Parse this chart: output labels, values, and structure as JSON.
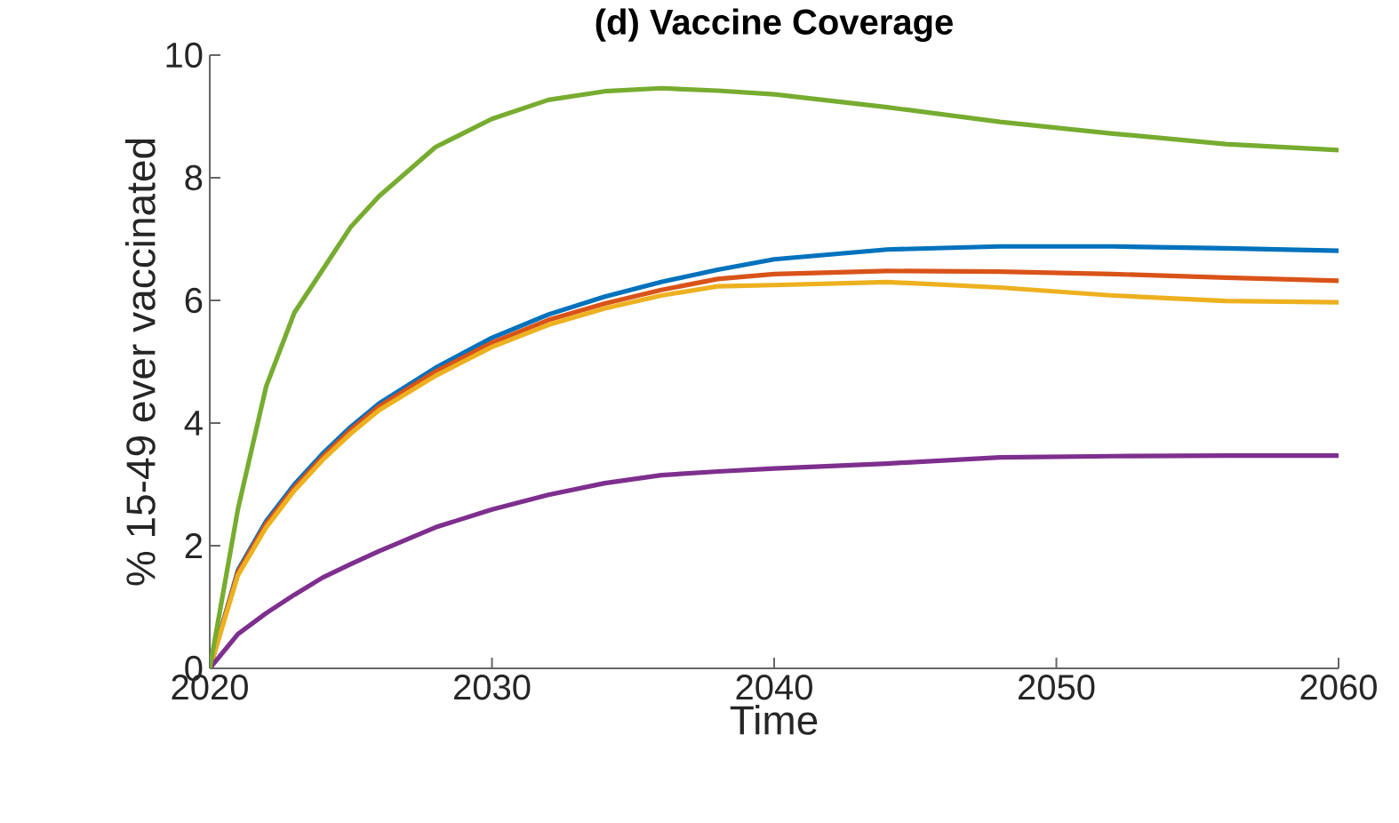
{
  "chart_data": {
    "type": "line",
    "title": "(d) Vaccine Coverage",
    "xlabel": "Time",
    "ylabel": "% 15-49 ever vaccinated",
    "xlim": [
      2020,
      2060
    ],
    "ylim": [
      0,
      10
    ],
    "xticks": [
      2020,
      2030,
      2040,
      2050,
      2060
    ],
    "yticks": [
      0,
      2,
      4,
      6,
      8,
      10
    ],
    "x": [
      2020,
      2021,
      2022,
      2023,
      2024,
      2025,
      2026,
      2028,
      2030,
      2032,
      2034,
      2036,
      2038,
      2040,
      2044,
      2048,
      2052,
      2056,
      2060
    ],
    "series": [
      {
        "color": "#0072bd",
        "values": [
          0,
          1.6,
          2.4,
          3.0,
          3.5,
          3.94,
          4.32,
          4.9,
          5.39,
          5.77,
          6.06,
          6.3,
          6.5,
          6.67,
          6.83,
          6.88,
          6.88,
          6.85,
          6.81
        ]
      },
      {
        "color": "#d95319",
        "values": [
          0,
          1.57,
          2.36,
          2.95,
          3.45,
          3.89,
          4.27,
          4.84,
          5.31,
          5.68,
          5.95,
          6.17,
          6.35,
          6.43,
          6.48,
          6.47,
          6.43,
          6.37,
          6.32
        ]
      },
      {
        "color": "#edb120",
        "values": [
          0,
          1.52,
          2.3,
          2.9,
          3.4,
          3.83,
          4.21,
          4.77,
          5.24,
          5.6,
          5.87,
          6.08,
          6.23,
          6.25,
          6.3,
          6.21,
          6.08,
          5.99,
          5.97
        ]
      },
      {
        "color": "#7e2f8e",
        "values": [
          0,
          0.56,
          0.9,
          1.2,
          1.48,
          1.7,
          1.91,
          2.3,
          2.59,
          2.83,
          3.02,
          3.15,
          3.21,
          3.26,
          3.34,
          3.44,
          3.46,
          3.47,
          3.47
        ]
      },
      {
        "color": "#77ac30",
        "values": [
          0,
          2.6,
          4.6,
          5.8,
          6.5,
          7.2,
          7.7,
          8.5,
          8.96,
          9.27,
          9.41,
          9.46,
          9.42,
          9.36,
          9.15,
          8.91,
          8.72,
          8.55,
          8.45
        ]
      }
    ]
  }
}
